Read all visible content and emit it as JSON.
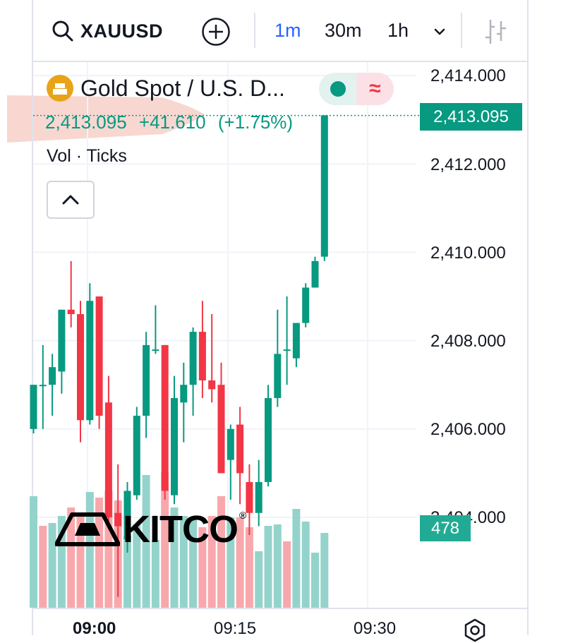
{
  "toolbar": {
    "symbol": "XAUUSD",
    "timeframes": [
      {
        "label": "1m",
        "active": true
      },
      {
        "label": "30m",
        "active": false
      },
      {
        "label": "1h",
        "active": false
      }
    ]
  },
  "legend": {
    "title": "Gold Spot / U.S. D...",
    "last": "2,413.095",
    "change": "+41.610",
    "change_pct": "(+1.75%)",
    "indicator": "Vol · Ticks"
  },
  "price_axis": {
    "labels": [
      "2,414.000",
      "2,412.000",
      "2,410.000",
      "2,408.000",
      "2,406.000",
      "2,404.000"
    ],
    "last_price_tag": "2,413.095",
    "volume_tag": "478"
  },
  "time_axis": {
    "labels": [
      {
        "text": "09:00",
        "bold": true
      },
      {
        "text": "09:15",
        "bold": false
      },
      {
        "text": "09:30",
        "bold": false
      }
    ]
  },
  "watermark": {
    "brand": "KITCO",
    "reg": "®"
  },
  "colors": {
    "up": "#089981",
    "down": "#f23645",
    "vol_up": "#94d3cb",
    "vol_down": "#f8a8ac",
    "accent": "#2962ff"
  },
  "chart_data": {
    "type": "candlestick",
    "symbol": "XAUUSD",
    "interval": "1m",
    "ylim": [
      2402.0,
      2414.4
    ],
    "last_price": 2413.095,
    "candles": [
      {
        "o": 2406.0,
        "h": 2407.0,
        "l": 2405.9,
        "c": 2407.0
      },
      {
        "o": 2407.0,
        "h": 2407.9,
        "l": 2406.0,
        "c": 2407.0
      },
      {
        "o": 2407.0,
        "h": 2407.7,
        "l": 2406.3,
        "c": 2407.4
      },
      {
        "o": 2407.3,
        "h": 2408.7,
        "l": 2406.8,
        "c": 2408.7
      },
      {
        "o": 2408.7,
        "h": 2409.8,
        "l": 2408.3,
        "c": 2408.6
      },
      {
        "o": 2408.6,
        "h": 2408.9,
        "l": 2405.7,
        "c": 2406.2
      },
      {
        "o": 2406.2,
        "h": 2409.3,
        "l": 2406.1,
        "c": 2408.9
      },
      {
        "o": 2409.0,
        "h": 2409.0,
        "l": 2406.0,
        "c": 2406.3
      },
      {
        "o": 2406.6,
        "h": 2407.2,
        "l": 2403.8,
        "c": 2404.0
      },
      {
        "o": 2404.1,
        "h": 2405.2,
        "l": 2402.2,
        "c": 2403.8
      },
      {
        "o": 2403.5,
        "h": 2404.8,
        "l": 2403.2,
        "c": 2404.6
      },
      {
        "o": 2404.5,
        "h": 2406.5,
        "l": 2404.4,
        "c": 2406.3
      },
      {
        "o": 2406.3,
        "h": 2408.2,
        "l": 2405.8,
        "c": 2407.9
      },
      {
        "o": 2407.8,
        "h": 2408.8,
        "l": 2407.7,
        "c": 2407.8
      },
      {
        "o": 2407.9,
        "h": 2407.9,
        "l": 2404.4,
        "c": 2404.6
      },
      {
        "o": 2404.5,
        "h": 2407.2,
        "l": 2404.3,
        "c": 2406.7
      },
      {
        "o": 2406.6,
        "h": 2407.5,
        "l": 2405.7,
        "c": 2407.0
      },
      {
        "o": 2407.0,
        "h": 2408.3,
        "l": 2406.3,
        "c": 2408.2
      },
      {
        "o": 2408.2,
        "h": 2408.9,
        "l": 2406.7,
        "c": 2407.1
      },
      {
        "o": 2407.1,
        "h": 2408.6,
        "l": 2406.6,
        "c": 2406.9
      },
      {
        "o": 2407.0,
        "h": 2407.5,
        "l": 2405.0,
        "c": 2405.0
      },
      {
        "o": 2405.3,
        "h": 2406.1,
        "l": 2404.4,
        "c": 2406.0
      },
      {
        "o": 2406.1,
        "h": 2406.5,
        "l": 2404.3,
        "c": 2405.0
      },
      {
        "o": 2404.8,
        "h": 2405.2,
        "l": 2403.6,
        "c": 2404.1
      },
      {
        "o": 2404.1,
        "h": 2405.3,
        "l": 2403.8,
        "c": 2404.8
      },
      {
        "o": 2404.8,
        "h": 2407.0,
        "l": 2404.7,
        "c": 2406.7
      },
      {
        "o": 2406.7,
        "h": 2408.7,
        "l": 2406.5,
        "c": 2407.7
      },
      {
        "o": 2407.8,
        "h": 2409.0,
        "l": 2407.0,
        "c": 2407.8
      },
      {
        "o": 2407.6,
        "h": 2408.4,
        "l": 2407.4,
        "c": 2408.4
      },
      {
        "o": 2408.4,
        "h": 2409.3,
        "l": 2408.3,
        "c": 2409.2
      },
      {
        "o": 2409.2,
        "h": 2409.9,
        "l": 2409.2,
        "c": 2409.8
      },
      {
        "o": 2409.9,
        "h": 2413.1,
        "l": 2409.8,
        "c": 2413.1
      }
    ],
    "volume": [
      {
        "v": 0.79,
        "up": true
      },
      {
        "v": 0.58,
        "up": false
      },
      {
        "v": 0.6,
        "up": true
      },
      {
        "v": 0.65,
        "up": true
      },
      {
        "v": 0.71,
        "up": false
      },
      {
        "v": 0.65,
        "up": false
      },
      {
        "v": 0.82,
        "up": true
      },
      {
        "v": 0.78,
        "up": false
      },
      {
        "v": 0.83,
        "up": false
      },
      {
        "v": 0.76,
        "up": false
      },
      {
        "v": 0.51,
        "up": true
      },
      {
        "v": 0.59,
        "up": true
      },
      {
        "v": 0.94,
        "up": true
      },
      {
        "v": 0.48,
        "up": true
      },
      {
        "v": 0.96,
        "up": false
      },
      {
        "v": 0.71,
        "up": true
      },
      {
        "v": 0.65,
        "up": true
      },
      {
        "v": 0.64,
        "up": true
      },
      {
        "v": 0.57,
        "up": false
      },
      {
        "v": 0.65,
        "up": false
      },
      {
        "v": 0.79,
        "up": false
      },
      {
        "v": 0.64,
        "up": true
      },
      {
        "v": 0.64,
        "up": false
      },
      {
        "v": 0.57,
        "up": false
      },
      {
        "v": 0.4,
        "up": true
      },
      {
        "v": 0.58,
        "up": true
      },
      {
        "v": 0.59,
        "up": true
      },
      {
        "v": 0.47,
        "up": false
      },
      {
        "v": 0.7,
        "up": true
      },
      {
        "v": 0.61,
        "up": true
      },
      {
        "v": 0.39,
        "up": true
      },
      {
        "v": 0.53,
        "up": true
      }
    ]
  }
}
